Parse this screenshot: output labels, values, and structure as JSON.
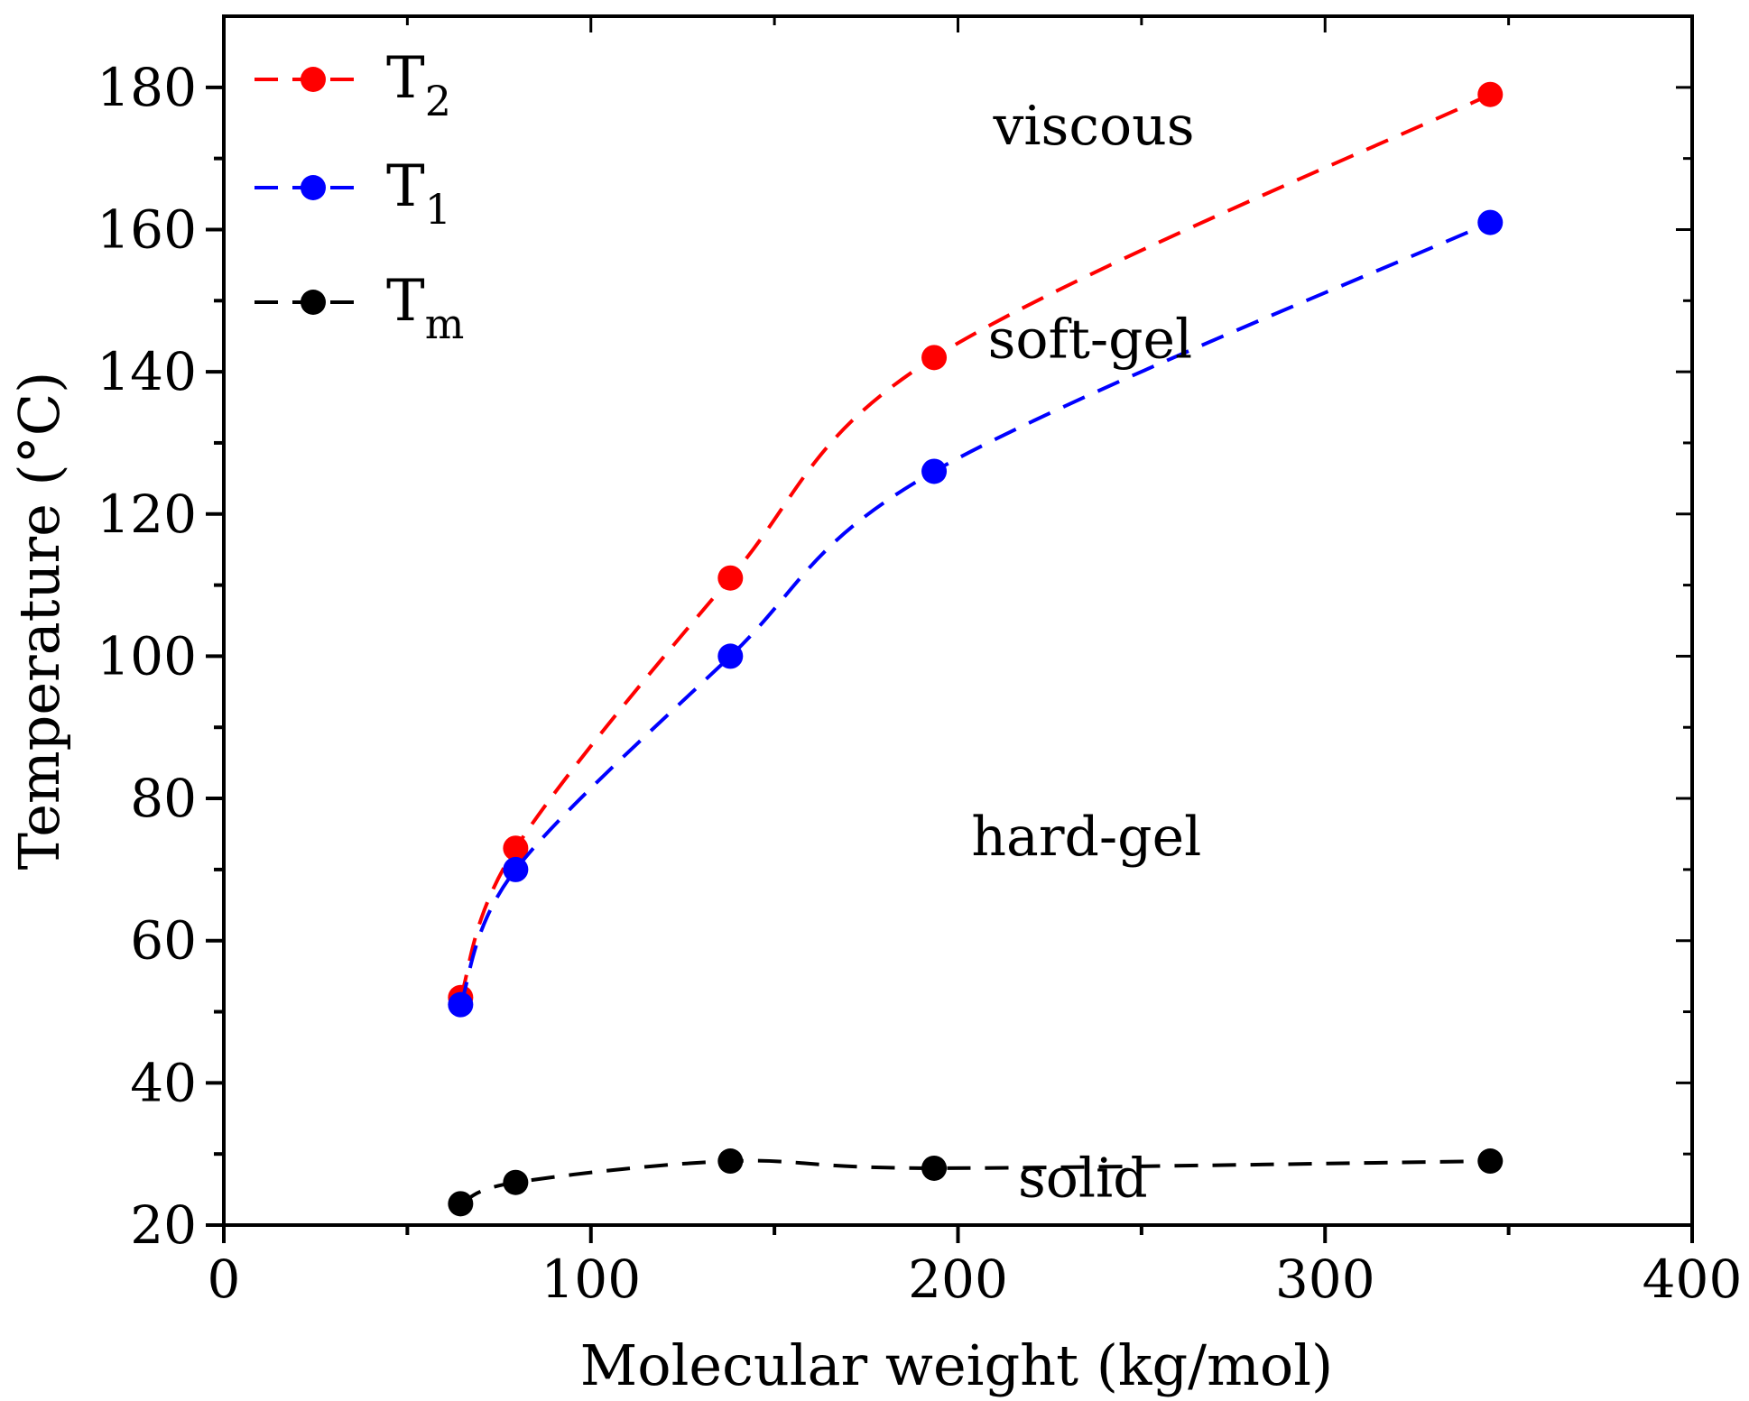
{
  "chart_data": {
    "type": "line",
    "title": "",
    "xlabel": "Molecular weight (kg/mol)",
    "ylabel": "Temperature (°C)",
    "xlim": [
      0,
      400
    ],
    "ylim": [
      20,
      190
    ],
    "xticks": [
      0,
      100,
      200,
      300,
      400
    ],
    "yticks": [
      20,
      40,
      60,
      80,
      100,
      120,
      140,
      160,
      180
    ],
    "grid": false,
    "legend_position": "top-left",
    "x": [
      64.5,
      79.5,
      138,
      193.5,
      345
    ],
    "series": [
      {
        "name": "T2",
        "main": "T",
        "sub": "2",
        "color": "#ff0000",
        "values": [
          52,
          73,
          111,
          142,
          179
        ]
      },
      {
        "name": "T1",
        "main": "T",
        "sub": "1",
        "color": "#0000ff",
        "values": [
          51,
          70,
          100,
          126,
          161
        ]
      },
      {
        "name": "Tm",
        "main": "T",
        "sub": "m",
        "color": "#000000",
        "values": [
          23,
          26,
          29,
          28,
          29
        ]
      }
    ],
    "annotations": [
      {
        "text": "viscous",
        "x": 237,
        "y": 172
      },
      {
        "text": "soft-gel",
        "x": 236,
        "y": 142
      },
      {
        "text": "hard-gel",
        "x": 235,
        "y": 72
      },
      {
        "text": "solid",
        "x": 234,
        "y": 24
      }
    ]
  }
}
